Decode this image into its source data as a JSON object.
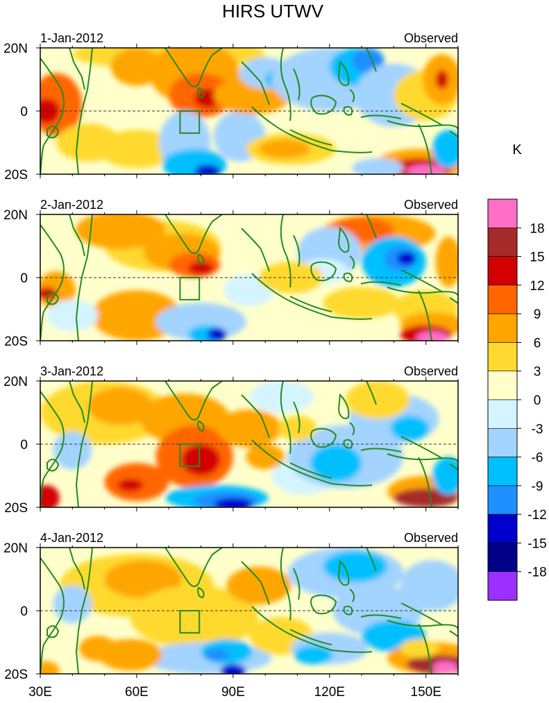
{
  "title": "HIRS UTWV",
  "unit_label": "K",
  "panels": [
    {
      "date": "1-Jan-2012",
      "tag": "Observed"
    },
    {
      "date": "2-Jan-2012",
      "tag": "Observed"
    },
    {
      "date": "3-Jan-2012",
      "tag": "Observed"
    },
    {
      "date": "4-Jan-2012",
      "tag": "Observed"
    }
  ],
  "lat_labels": [
    "20N",
    "0",
    "20S"
  ],
  "lon_labels": [
    "30E",
    "60E",
    "90E",
    "120E",
    "150E"
  ],
  "colorbar": {
    "colors": [
      "#ff6ec7",
      "#a52a2a",
      "#d20000",
      "#ff6600",
      "#ffa500",
      "#ffd92f",
      "#ffffcc",
      "#d4f4ff",
      "#a3d3ff",
      "#00bfff",
      "#1e90ff",
      "#0000cd",
      "#00008b",
      "#9b30ff"
    ],
    "labels": [
      "18",
      "15",
      "12",
      "9",
      "6",
      "3",
      "0",
      "-3",
      "-6",
      "-9",
      "-12",
      "-15",
      "-18"
    ]
  },
  "coast_color": "#228b22",
  "box_color": "#228b22"
}
